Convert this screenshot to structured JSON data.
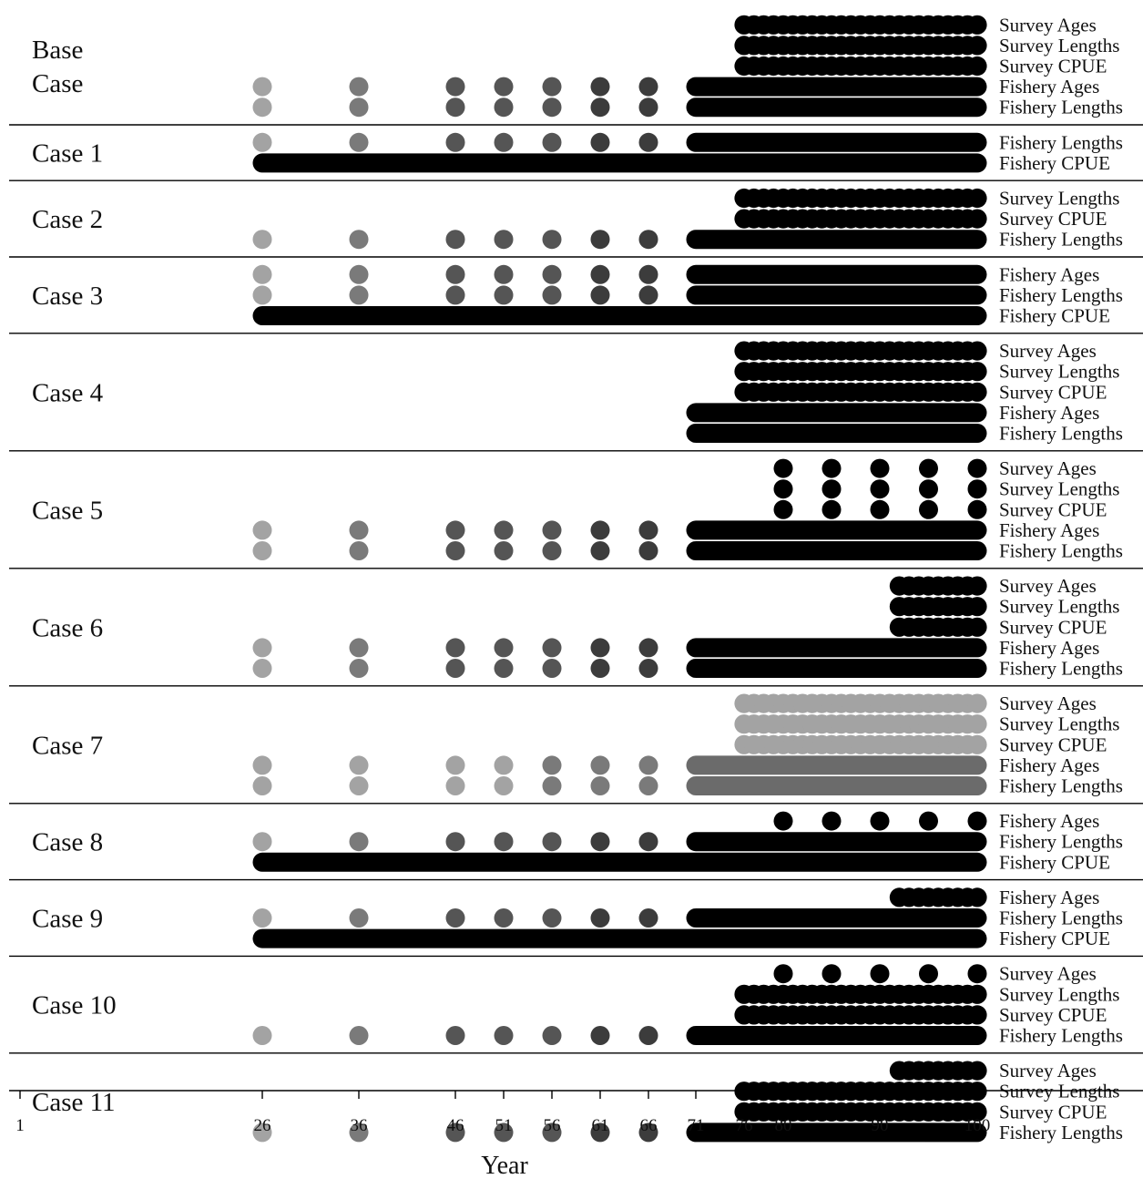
{
  "chart_data": {
    "type": "timeline-dot",
    "xlabel": "Year",
    "xlim": [
      1,
      100
    ],
    "x_ticks": [
      1,
      26,
      36,
      46,
      51,
      56,
      61,
      66,
      71,
      76,
      80,
      90,
      100
    ],
    "colors": {
      "black": "#000000",
      "dark": "#3c3c3c",
      "mid_dark": "#555555",
      "mid": "#7a7a7a",
      "light": "#a3a3a3",
      "bar_gray": "#6b6b6b",
      "rule": "#000000"
    },
    "historical_years": [
      26,
      36,
      46,
      51,
      56,
      61,
      66
    ],
    "historical_colors": [
      "light",
      "mid",
      "mid_dark",
      "mid_dark",
      "mid_dark",
      "dark",
      "dark"
    ],
    "historical_colors_case7": [
      "light",
      "light",
      "light",
      "light",
      "mid",
      "mid",
      "mid"
    ],
    "cases": [
      {
        "label": "Base Case",
        "label_lines": [
          "Base",
          "Case"
        ],
        "rows": [
          {
            "label": "Survey Ages",
            "dots": [
              76,
              100,
              1
            ]
          },
          {
            "label": "Survey Lengths",
            "dots": [
              76,
              100,
              1
            ]
          },
          {
            "label": "Survey CPUE",
            "dots": [
              76,
              100,
              1
            ]
          },
          {
            "label": "Fishery Ages",
            "historical": true,
            "bar": [
              71,
              100
            ]
          },
          {
            "label": "Fishery Lengths",
            "historical": true,
            "bar": [
              71,
              100
            ]
          }
        ]
      },
      {
        "label": "Case 1",
        "rows": [
          {
            "label": "Fishery Lengths",
            "historical": true,
            "bar": [
              71,
              100
            ]
          },
          {
            "label": "Fishery CPUE",
            "bar": [
              26,
              100
            ]
          }
        ]
      },
      {
        "label": "Case 2",
        "rows": [
          {
            "label": "Survey Lengths",
            "dots": [
              76,
              100,
              1
            ]
          },
          {
            "label": "Survey CPUE",
            "dots": [
              76,
              100,
              1
            ]
          },
          {
            "label": "Fishery Lengths",
            "historical": true,
            "bar": [
              71,
              100
            ]
          }
        ]
      },
      {
        "label": "Case 3",
        "rows": [
          {
            "label": "Fishery Ages",
            "historical": true,
            "bar": [
              71,
              100
            ]
          },
          {
            "label": "Fishery Lengths",
            "historical": true,
            "bar": [
              71,
              100
            ]
          },
          {
            "label": "Fishery CPUE",
            "bar": [
              26,
              100
            ]
          }
        ]
      },
      {
        "label": "Case 4",
        "rows": [
          {
            "label": "Survey Ages",
            "dots": [
              76,
              100,
              1
            ]
          },
          {
            "label": "Survey Lengths",
            "dots": [
              76,
              100,
              1
            ]
          },
          {
            "label": "Survey CPUE",
            "dots": [
              76,
              100,
              1
            ]
          },
          {
            "label": "Fishery Ages",
            "bar": [
              71,
              100
            ]
          },
          {
            "label": "Fishery Lengths",
            "bar": [
              71,
              100
            ]
          }
        ]
      },
      {
        "label": "Case 5",
        "rows": [
          {
            "label": "Survey Ages",
            "dots": [
              80,
              100,
              5
            ]
          },
          {
            "label": "Survey Lengths",
            "dots": [
              80,
              100,
              5
            ]
          },
          {
            "label": "Survey CPUE",
            "dots": [
              80,
              100,
              5
            ]
          },
          {
            "label": "Fishery Ages",
            "historical": true,
            "bar": [
              71,
              100
            ]
          },
          {
            "label": "Fishery Lengths",
            "historical": true,
            "bar": [
              71,
              100
            ]
          }
        ]
      },
      {
        "label": "Case 6",
        "rows": [
          {
            "label": "Survey Ages",
            "dots": [
              92,
              100,
              1
            ]
          },
          {
            "label": "Survey Lengths",
            "dots": [
              92,
              100,
              1
            ]
          },
          {
            "label": "Survey CPUE",
            "dots": [
              92,
              100,
              1
            ]
          },
          {
            "label": "Fishery Ages",
            "historical": true,
            "bar": [
              71,
              100
            ]
          },
          {
            "label": "Fishery Lengths",
            "historical": true,
            "bar": [
              71,
              100
            ]
          }
        ]
      },
      {
        "label": "Case 7",
        "rows": [
          {
            "label": "Survey Ages",
            "dots": [
              76,
              100,
              1
            ],
            "dot_color": "light"
          },
          {
            "label": "Survey Lengths",
            "dots": [
              76,
              100,
              1
            ],
            "dot_color": "light"
          },
          {
            "label": "Survey CPUE",
            "dots": [
              76,
              100,
              1
            ],
            "dot_color": "light"
          },
          {
            "label": "Fishery Ages",
            "historical": true,
            "historical_palette": "case7",
            "bar": [
              71,
              100
            ],
            "bar_color": "bar_gray"
          },
          {
            "label": "Fishery Lengths",
            "historical": true,
            "historical_palette": "case7",
            "bar": [
              71,
              100
            ],
            "bar_color": "bar_gray"
          }
        ]
      },
      {
        "label": "Case 8",
        "rows": [
          {
            "label": "Fishery Ages",
            "dots": [
              80,
              100,
              5
            ]
          },
          {
            "label": "Fishery Lengths",
            "historical": true,
            "bar": [
              71,
              100
            ]
          },
          {
            "label": "Fishery CPUE",
            "bar": [
              26,
              100
            ]
          }
        ]
      },
      {
        "label": "Case 9",
        "rows": [
          {
            "label": "Fishery Ages",
            "dots": [
              92,
              100,
              1
            ]
          },
          {
            "label": "Fishery Lengths",
            "historical": true,
            "bar": [
              71,
              100
            ]
          },
          {
            "label": "Fishery CPUE",
            "bar": [
              26,
              100
            ]
          }
        ]
      },
      {
        "label": "Case 10",
        "rows": [
          {
            "label": "Survey Ages",
            "dots": [
              80,
              100,
              5
            ]
          },
          {
            "label": "Survey Lengths",
            "dots": [
              76,
              100,
              1
            ]
          },
          {
            "label": "Survey CPUE",
            "dots": [
              76,
              100,
              1
            ]
          },
          {
            "label": "Fishery Lengths",
            "historical": true,
            "bar": [
              71,
              100
            ]
          }
        ]
      },
      {
        "label": "Case 11",
        "rows": [
          {
            "label": "Survey Ages",
            "dots": [
              92,
              100,
              1
            ]
          },
          {
            "label": "Survey Lengths",
            "dots": [
              76,
              100,
              1
            ]
          },
          {
            "label": "Survey CPUE",
            "dots": [
              76,
              100,
              1
            ]
          },
          {
            "label": "Fishery Lengths",
            "historical": true,
            "bar": [
              71,
              100
            ]
          }
        ]
      }
    ]
  }
}
